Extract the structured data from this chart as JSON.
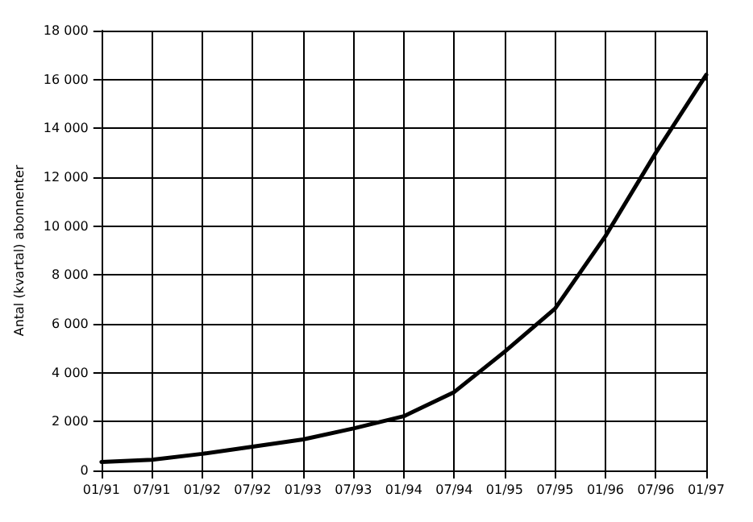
{
  "chart_data": {
    "type": "line",
    "ylabel": "Antal (kvartal) abonnenter",
    "categories": [
      "01/91",
      "07/91",
      "01/92",
      "07/92",
      "01/93",
      "07/93",
      "01/94",
      "07/94",
      "01/95",
      "07/95",
      "01/96",
      "07/96",
      "01/97"
    ],
    "series": [
      {
        "color": "#000000",
        "values": [
          350,
          440,
          680,
          970,
          1270,
          1720,
          2220,
          3210,
          4860,
          6620,
          9590,
          13000,
          16190
        ]
      }
    ],
    "ylim": [
      0,
      18000
    ],
    "yticks": [
      0,
      {
        "value": 2000,
        "label": "2 000"
      },
      {
        "value": 4000,
        "label": "4 000"
      },
      {
        "value": 6000,
        "label": "6 000"
      },
      {
        "value": 8000,
        "label": "8 000"
      },
      {
        "value": 10000,
        "label": "10 000"
      },
      {
        "value": 12000,
        "label": "12 000"
      },
      {
        "value": 14000,
        "label": "14 000"
      },
      {
        "value": 16000,
        "label": "16 000"
      },
      {
        "value": 18000,
        "label": "18 000"
      }
    ],
    "grid": true,
    "marker": "none",
    "line_style": "solid"
  }
}
